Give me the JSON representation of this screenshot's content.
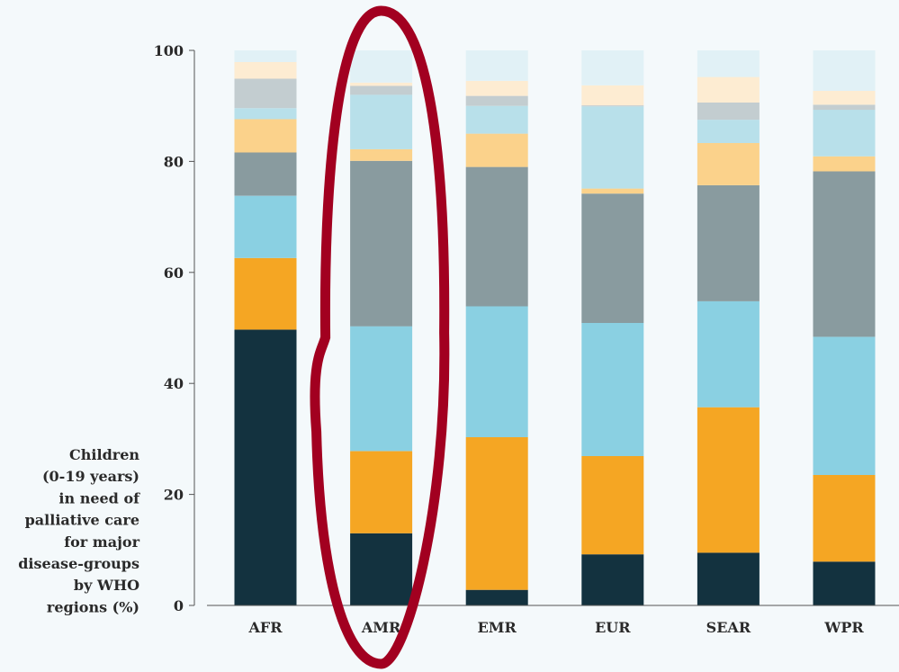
{
  "chart_data": {
    "type": "bar",
    "stacked": true,
    "ylabel": "Children (0-19 years) in need of palliative care for major disease-groups by WHO regions (%)",
    "ylabel_lines": [
      "Children",
      "(0-19 years)",
      "in need of",
      "palliative care",
      "for major",
      "disease-groups",
      "by WHO",
      "regions (%)"
    ],
    "ylim": [
      0,
      100
    ],
    "yticks": [
      0,
      20,
      40,
      60,
      80,
      100
    ],
    "grid": false,
    "categories": [
      "AFR",
      "AMR",
      "EMR",
      "EUR",
      "SEAR",
      "WPR"
    ],
    "series": [
      {
        "values": [
          49.7,
          13.0,
          2.8,
          9.2,
          9.5,
          7.9
        ],
        "color": "#13323f"
      },
      {
        "values": [
          12.9,
          14.8,
          27.5,
          17.7,
          26.2,
          15.6
        ],
        "color": "#f5a623"
      },
      {
        "values": [
          11.2,
          22.5,
          23.6,
          24.0,
          19.1,
          24.9
        ],
        "color": "#8ad0e2"
      },
      {
        "values": [
          7.8,
          29.8,
          25.1,
          23.3,
          20.9,
          29.8
        ],
        "color": "#899b9f"
      },
      {
        "values": [
          6.0,
          2.1,
          6.0,
          0.9,
          7.6,
          2.7
        ],
        "color": "#fbd28b"
      },
      {
        "values": [
          2.0,
          9.8,
          5.0,
          14.8,
          4.2,
          8.4
        ],
        "color": "#b8e0ea"
      },
      {
        "values": [
          5.3,
          1.6,
          1.8,
          0.2,
          3.1,
          0.9
        ],
        "color": "#c3cdd0"
      },
      {
        "values": [
          3.0,
          0.6,
          2.7,
          3.6,
          4.6,
          2.5
        ],
        "color": "#fdecd2"
      },
      {
        "values": [
          2.1,
          5.8,
          5.5,
          6.3,
          4.8,
          7.3
        ],
        "color": "#e1f1f6"
      }
    ],
    "highlight": {
      "category": "AMR",
      "color": "#a20020"
    }
  }
}
